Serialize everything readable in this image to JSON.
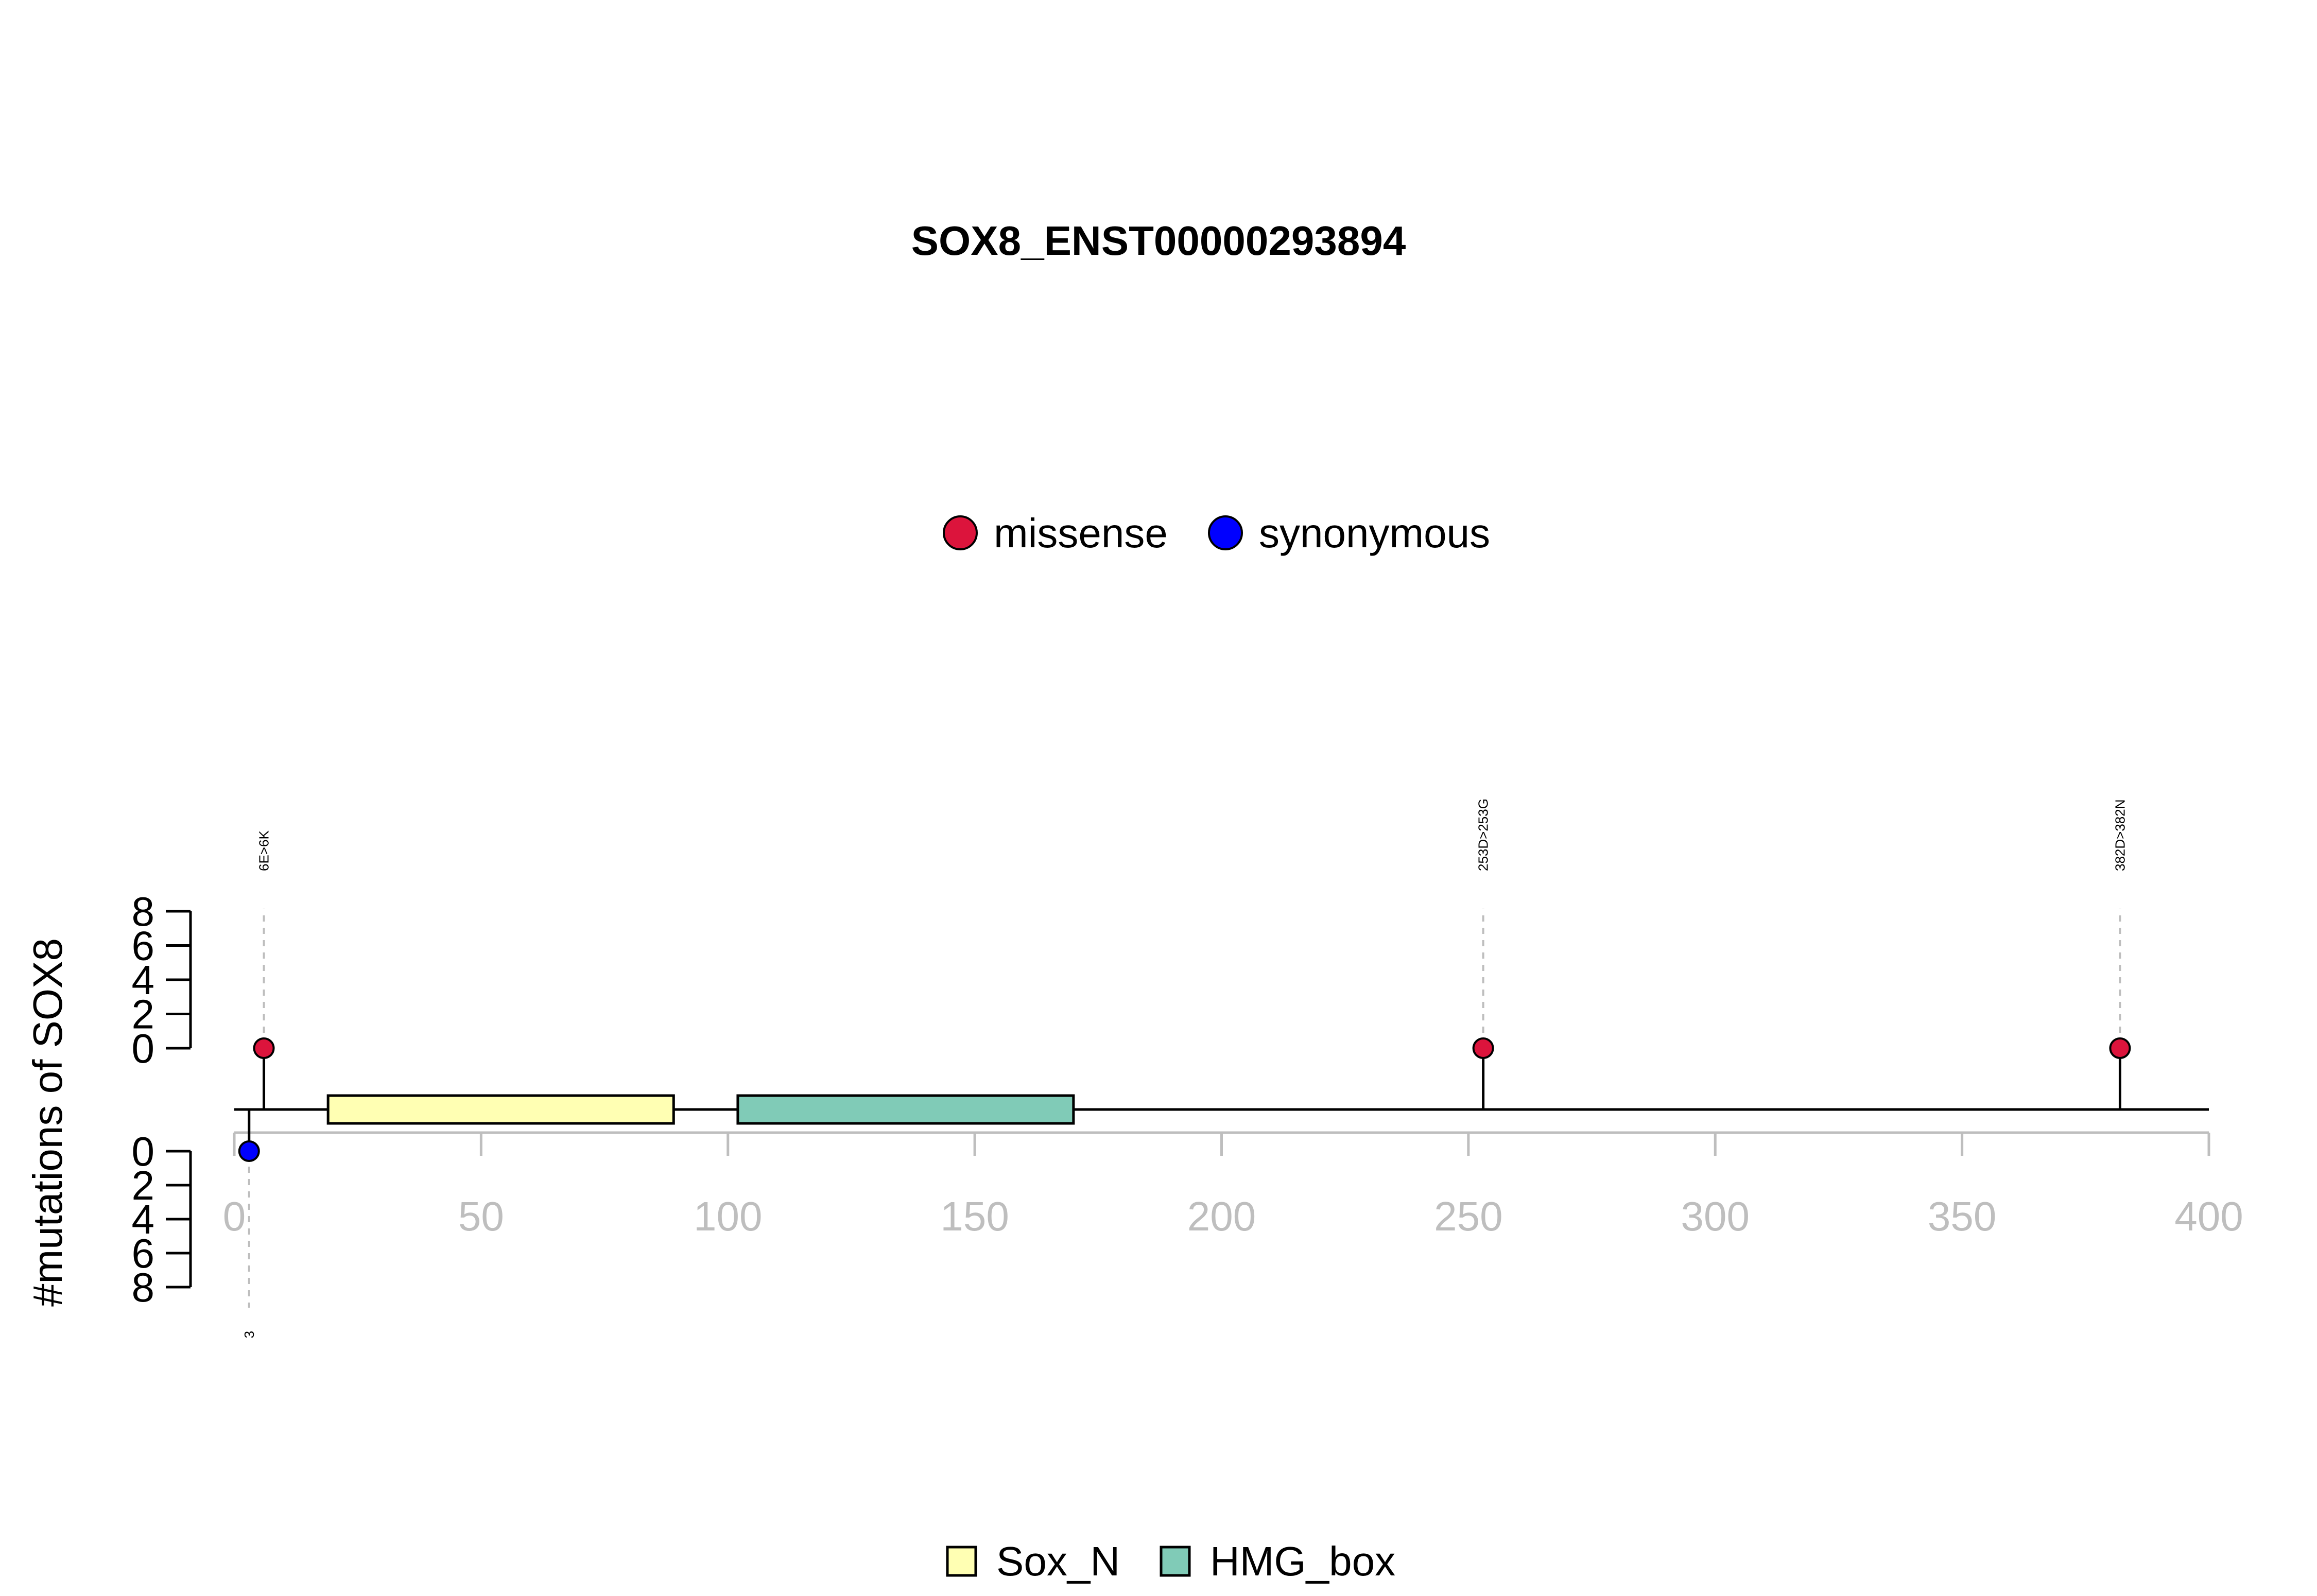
{
  "chart_data": {
    "type": "lollipop",
    "title": "SOX8_ENST00000293894",
    "ylabel": "#mutations of SOX8",
    "xlim": [
      0,
      400
    ],
    "x_ticks": [
      "0",
      "50",
      "100",
      "150",
      "200",
      "250",
      "300",
      "350",
      "400"
    ],
    "y_ticks_top": [
      "0",
      "2",
      "4",
      "6",
      "8"
    ],
    "y_ticks_bottom": [
      "0",
      "2",
      "4",
      "6",
      "8"
    ],
    "ylim_top": [
      0,
      8
    ],
    "ylim_bottom": [
      0,
      8
    ],
    "mutation_legend": [
      {
        "name": "missense",
        "color": "#dc143c"
      },
      {
        "name": "synonymous",
        "color": "#0000ff"
      }
    ],
    "mutations": [
      {
        "position": 6,
        "count": 1,
        "type": "missense",
        "side": "top",
        "label": "6E>6K"
      },
      {
        "position": 253,
        "count": 1,
        "type": "missense",
        "side": "top",
        "label": "253D>253G"
      },
      {
        "position": 382,
        "count": 1,
        "type": "missense",
        "side": "top",
        "label": "382D>382N"
      },
      {
        "position": 3,
        "count": 1,
        "type": "synonymous",
        "side": "bottom",
        "label": "3"
      }
    ],
    "domains": [
      {
        "name": "Sox_N",
        "start": 19,
        "end": 89,
        "color": "#ffffb3"
      },
      {
        "name": "HMG_box",
        "start": 102,
        "end": 170,
        "color": "#80cbb7"
      }
    ]
  }
}
